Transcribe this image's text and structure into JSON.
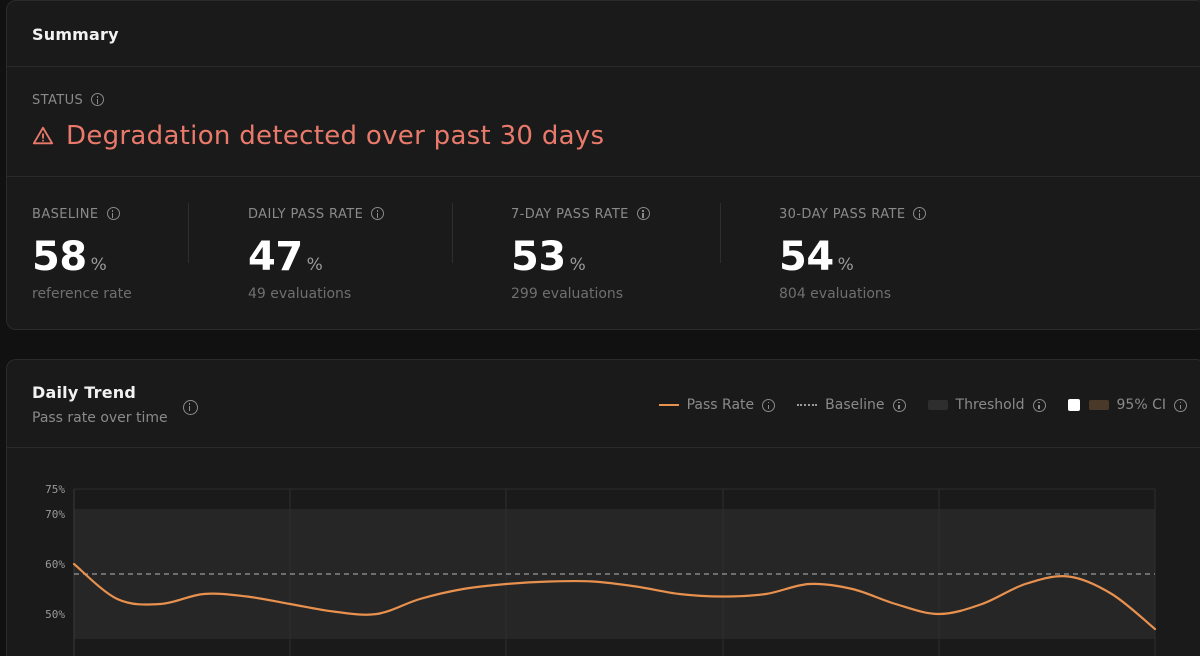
{
  "summary": {
    "title": "Summary",
    "status_label": "STATUS",
    "status_icon": "warning-triangle-icon",
    "status_message": "Degradation detected over past 30 days",
    "status_color": "#e97a6b",
    "metrics": [
      {
        "label": "BASELINE",
        "value": "58",
        "unit": "%",
        "sub": "reference rate"
      },
      {
        "label": "DAILY PASS RATE",
        "value": "47",
        "unit": "%",
        "sub": "49 evaluations"
      },
      {
        "label": "7-DAY PASS RATE",
        "value": "53",
        "unit": "%",
        "sub": "299 evaluations"
      },
      {
        "label": "30-DAY PASS RATE",
        "value": "54",
        "unit": "%",
        "sub": "804 evaluations"
      }
    ]
  },
  "trend": {
    "title": "Daily Trend",
    "subtitle": "Pass rate over time",
    "legend": {
      "pass_rate": "Pass Rate",
      "baseline": "Baseline",
      "threshold": "Threshold",
      "ci": "95% CI"
    },
    "colors": {
      "pass_rate": "#e8914f",
      "baseline": "#9a9a9a",
      "threshold_band": "#262626"
    }
  },
  "chart_data": {
    "type": "line",
    "series": [
      {
        "name": "Pass Rate",
        "values": [
          60,
          53,
          52,
          54,
          53.5,
          52,
          50.5,
          50,
          53,
          55,
          56,
          56.5,
          56.5,
          55.5,
          54,
          53.5,
          54,
          56,
          55,
          52,
          50,
          52,
          56,
          57.5,
          54,
          47
        ]
      }
    ],
    "baseline": 58,
    "threshold_band": [
      45,
      71
    ],
    "ylim": [
      45,
      75
    ],
    "y_ticks": [
      "75%",
      "70%",
      "60%",
      "50%"
    ],
    "y_tick_values": [
      75,
      70,
      60,
      50
    ],
    "grid": true
  }
}
